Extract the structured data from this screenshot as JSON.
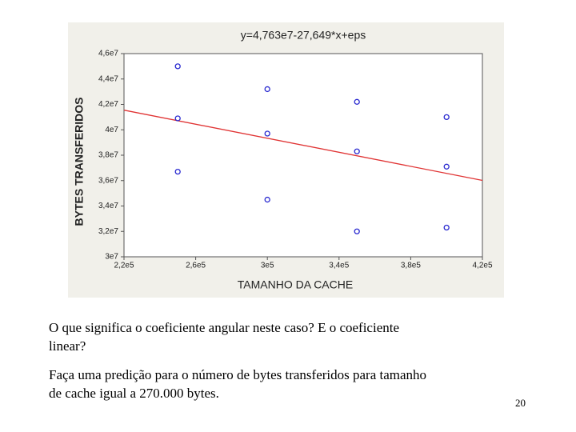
{
  "chart_data": {
    "type": "scatter",
    "title": "y=4,763e7-27,649*x+eps",
    "x_label": "TAMANHO DA CACHE",
    "y_label": "BYTES TRANSFERIDOS",
    "x": [
      250000,
      250000,
      250000,
      300000,
      300000,
      300000,
      350000,
      350000,
      350000,
      400000,
      400000,
      400000
    ],
    "y": [
      45000000,
      40900000,
      36700000,
      43200000,
      39700000,
      34500000,
      42200000,
      38300000,
      32000000,
      41000000,
      37100000,
      32300000
    ],
    "color": "#2a2ad0",
    "trend": {
      "intercept": 47630000,
      "slope": -27.649,
      "color": "#e03434"
    },
    "xlim": [
      220000,
      420000
    ],
    "ylim": [
      30000000,
      46000000
    ],
    "xticks": [
      {
        "value": 220000,
        "label": "2,2e5"
      },
      {
        "value": 260000,
        "label": "2,6e5"
      },
      {
        "value": 300000,
        "label": "3e5"
      },
      {
        "value": 340000,
        "label": "3,4e5"
      },
      {
        "value": 380000,
        "label": "3,8e5"
      },
      {
        "value": 420000,
        "label": "4,2e5"
      }
    ],
    "yticks": [
      {
        "value": 30000000,
        "label": "3e7"
      },
      {
        "value": 32000000,
        "label": "3,2e7"
      },
      {
        "value": 34000000,
        "label": "3,4e7"
      },
      {
        "value": 36000000,
        "label": "3,6e7"
      },
      {
        "value": 38000000,
        "label": "3,8e7"
      },
      {
        "value": 40000000,
        "label": "4e7"
      },
      {
        "value": 42000000,
        "label": "4,2e7"
      },
      {
        "value": 44000000,
        "label": "4,4e7"
      },
      {
        "value": 46000000,
        "label": "4,6e7"
      }
    ]
  },
  "text": {
    "question_1": [
      "O que significa o coeficiente angular neste caso? E o coeficiente",
      "linear?"
    ],
    "question_2": [
      "Faça uma predição para o número de bytes transferidos para tamanho",
      "de cache igual a 270.000 bytes."
    ],
    "page_number": "20"
  }
}
